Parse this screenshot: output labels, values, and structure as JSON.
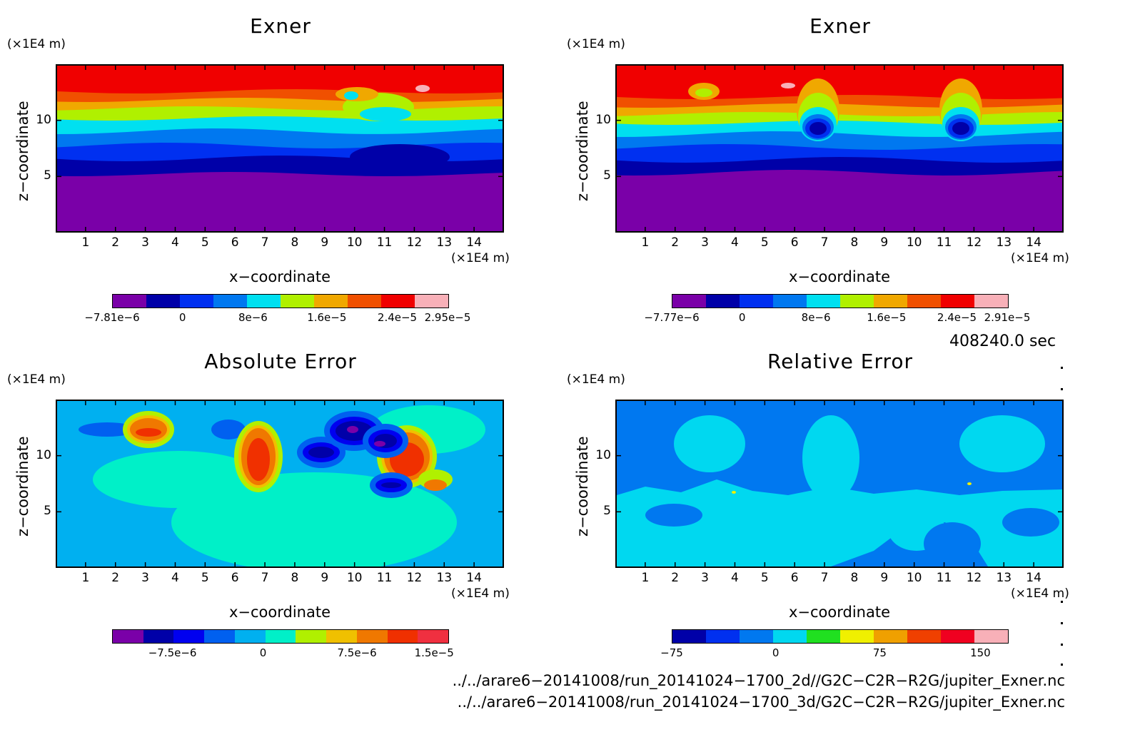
{
  "panels": [
    {
      "title": "Exner",
      "unit_y": "(×1E4 m)",
      "unit_x": "(×1E4 m)",
      "ylabel": "z−coordinate",
      "xlabel": "x−coordinate",
      "xticks": [
        "1",
        "2",
        "3",
        "4",
        "5",
        "6",
        "7",
        "8",
        "9",
        "10",
        "11",
        "12",
        "13",
        "14"
      ],
      "yticks": [
        "5",
        "10"
      ],
      "cbar_labels": [
        "−7.81e−6",
        "0",
        "8e−6",
        "1.6e−5",
        "2.4e−5",
        "2.95e−5"
      ],
      "cbar_colors": [
        "#7a00a8",
        "#0000a8",
        "#0030f0",
        "#0078f0",
        "#00e0f0",
        "#b0f000",
        "#f0a800",
        "#f05000",
        "#f00000",
        "#f8b0b8"
      ]
    },
    {
      "title": "Exner",
      "unit_y": "(×1E4 m)",
      "unit_x": "(×1E4 m)",
      "ylabel": "z−coordinate",
      "xlabel": "x−coordinate",
      "xticks": [
        "1",
        "2",
        "3",
        "4",
        "5",
        "6",
        "7",
        "8",
        "9",
        "10",
        "11",
        "12",
        "13",
        "14"
      ],
      "yticks": [
        "5",
        "10"
      ],
      "cbar_labels": [
        "−7.77e−6",
        "0",
        "8e−6",
        "1.6e−5",
        "2.4e−5",
        "2.91e−5"
      ],
      "cbar_colors": [
        "#7a00a8",
        "#0000a8",
        "#0030f0",
        "#0078f0",
        "#00e0f0",
        "#b0f000",
        "#f0a800",
        "#f05000",
        "#f00000",
        "#f8b0b8"
      ]
    },
    {
      "title": "Absolute Error",
      "unit_y": "(×1E4 m)",
      "unit_x": "(×1E4 m)",
      "ylabel": "z−coordinate",
      "xlabel": "x−coordinate",
      "xticks": [
        "1",
        "2",
        "3",
        "4",
        "5",
        "6",
        "7",
        "8",
        "9",
        "10",
        "11",
        "12",
        "13",
        "14"
      ],
      "yticks": [
        "5",
        "10"
      ],
      "cbar_labels": [
        "−7.5e−6",
        "0",
        "7.5e−6",
        "1.5e−5"
      ],
      "cbar_colors": [
        "#7a00a8",
        "#0000a8",
        "#0000f0",
        "#0060f0",
        "#00b0f0",
        "#00f0c8",
        "#b0f000",
        "#f0c000",
        "#f07800",
        "#f03000",
        "#f03040"
      ]
    },
    {
      "title": "Relative Error",
      "unit_y": "(×1E4 m)",
      "unit_x": "(×1E4 m)",
      "ylabel": "z−coordinate",
      "xlabel": "x−coordinate",
      "xticks": [
        "1",
        "2",
        "3",
        "4",
        "5",
        "6",
        "7",
        "8",
        "9",
        "10",
        "11",
        "12",
        "13",
        "14"
      ],
      "yticks": [
        "5",
        "10"
      ],
      "cbar_labels": [
        "−75",
        "0",
        "75",
        "150"
      ],
      "cbar_colors": [
        "#0000a8",
        "#0030f0",
        "#0078f0",
        "#00d8f0",
        "#20e020",
        "#f0f000",
        "#f0a000",
        "#f04000",
        "#f00020",
        "#f8b0b8"
      ]
    }
  ],
  "time_label": "408240.0 sec",
  "footer": [
    "../../arare6−20141008/run_20141024−1700_2d//G2C−C2R−R2G/jupiter_Exner.nc",
    "../../arare6−20141008/run_20141024−1700_3d/G2C−C2R−R2G/jupiter_Exner.nc"
  ],
  "chart_data": [
    {
      "type": "heatmap",
      "title": "Exner",
      "xlabel": "x−coordinate",
      "ylabel": "z−coordinate",
      "xlim": [
        0,
        15
      ],
      "ylim": [
        0,
        15
      ],
      "value_range": [
        -7.81e-06,
        2.95e-05
      ],
      "levels": [
        -7.81e-06,
        -4e-06,
        0,
        4e-06,
        8e-06,
        1.2e-05,
        1.6e-05,
        2e-05,
        2.4e-05,
        2.8e-05,
        2.95e-05
      ]
    },
    {
      "type": "heatmap",
      "title": "Exner",
      "xlabel": "x−coordinate",
      "ylabel": "z−coordinate",
      "xlim": [
        0,
        15
      ],
      "ylim": [
        0,
        15
      ],
      "value_range": [
        -7.77e-06,
        2.91e-05
      ],
      "levels": [
        -7.77e-06,
        -4e-06,
        0,
        4e-06,
        8e-06,
        1.2e-05,
        1.6e-05,
        2e-05,
        2.4e-05,
        2.8e-05,
        2.91e-05
      ]
    },
    {
      "type": "heatmap",
      "title": "Absolute Error",
      "xlabel": "x−coordinate",
      "ylabel": "z−coordinate",
      "xlim": [
        0,
        15
      ],
      "ylim": [
        0,
        15
      ],
      "value_range": [
        -1.1e-05,
        1.6e-05
      ]
    },
    {
      "type": "heatmap",
      "title": "Relative Error",
      "xlabel": "x−coordinate",
      "ylabel": "z−coordinate",
      "xlim": [
        0,
        15
      ],
      "ylim": [
        0,
        15
      ],
      "value_range": [
        -90,
        170
      ]
    }
  ]
}
